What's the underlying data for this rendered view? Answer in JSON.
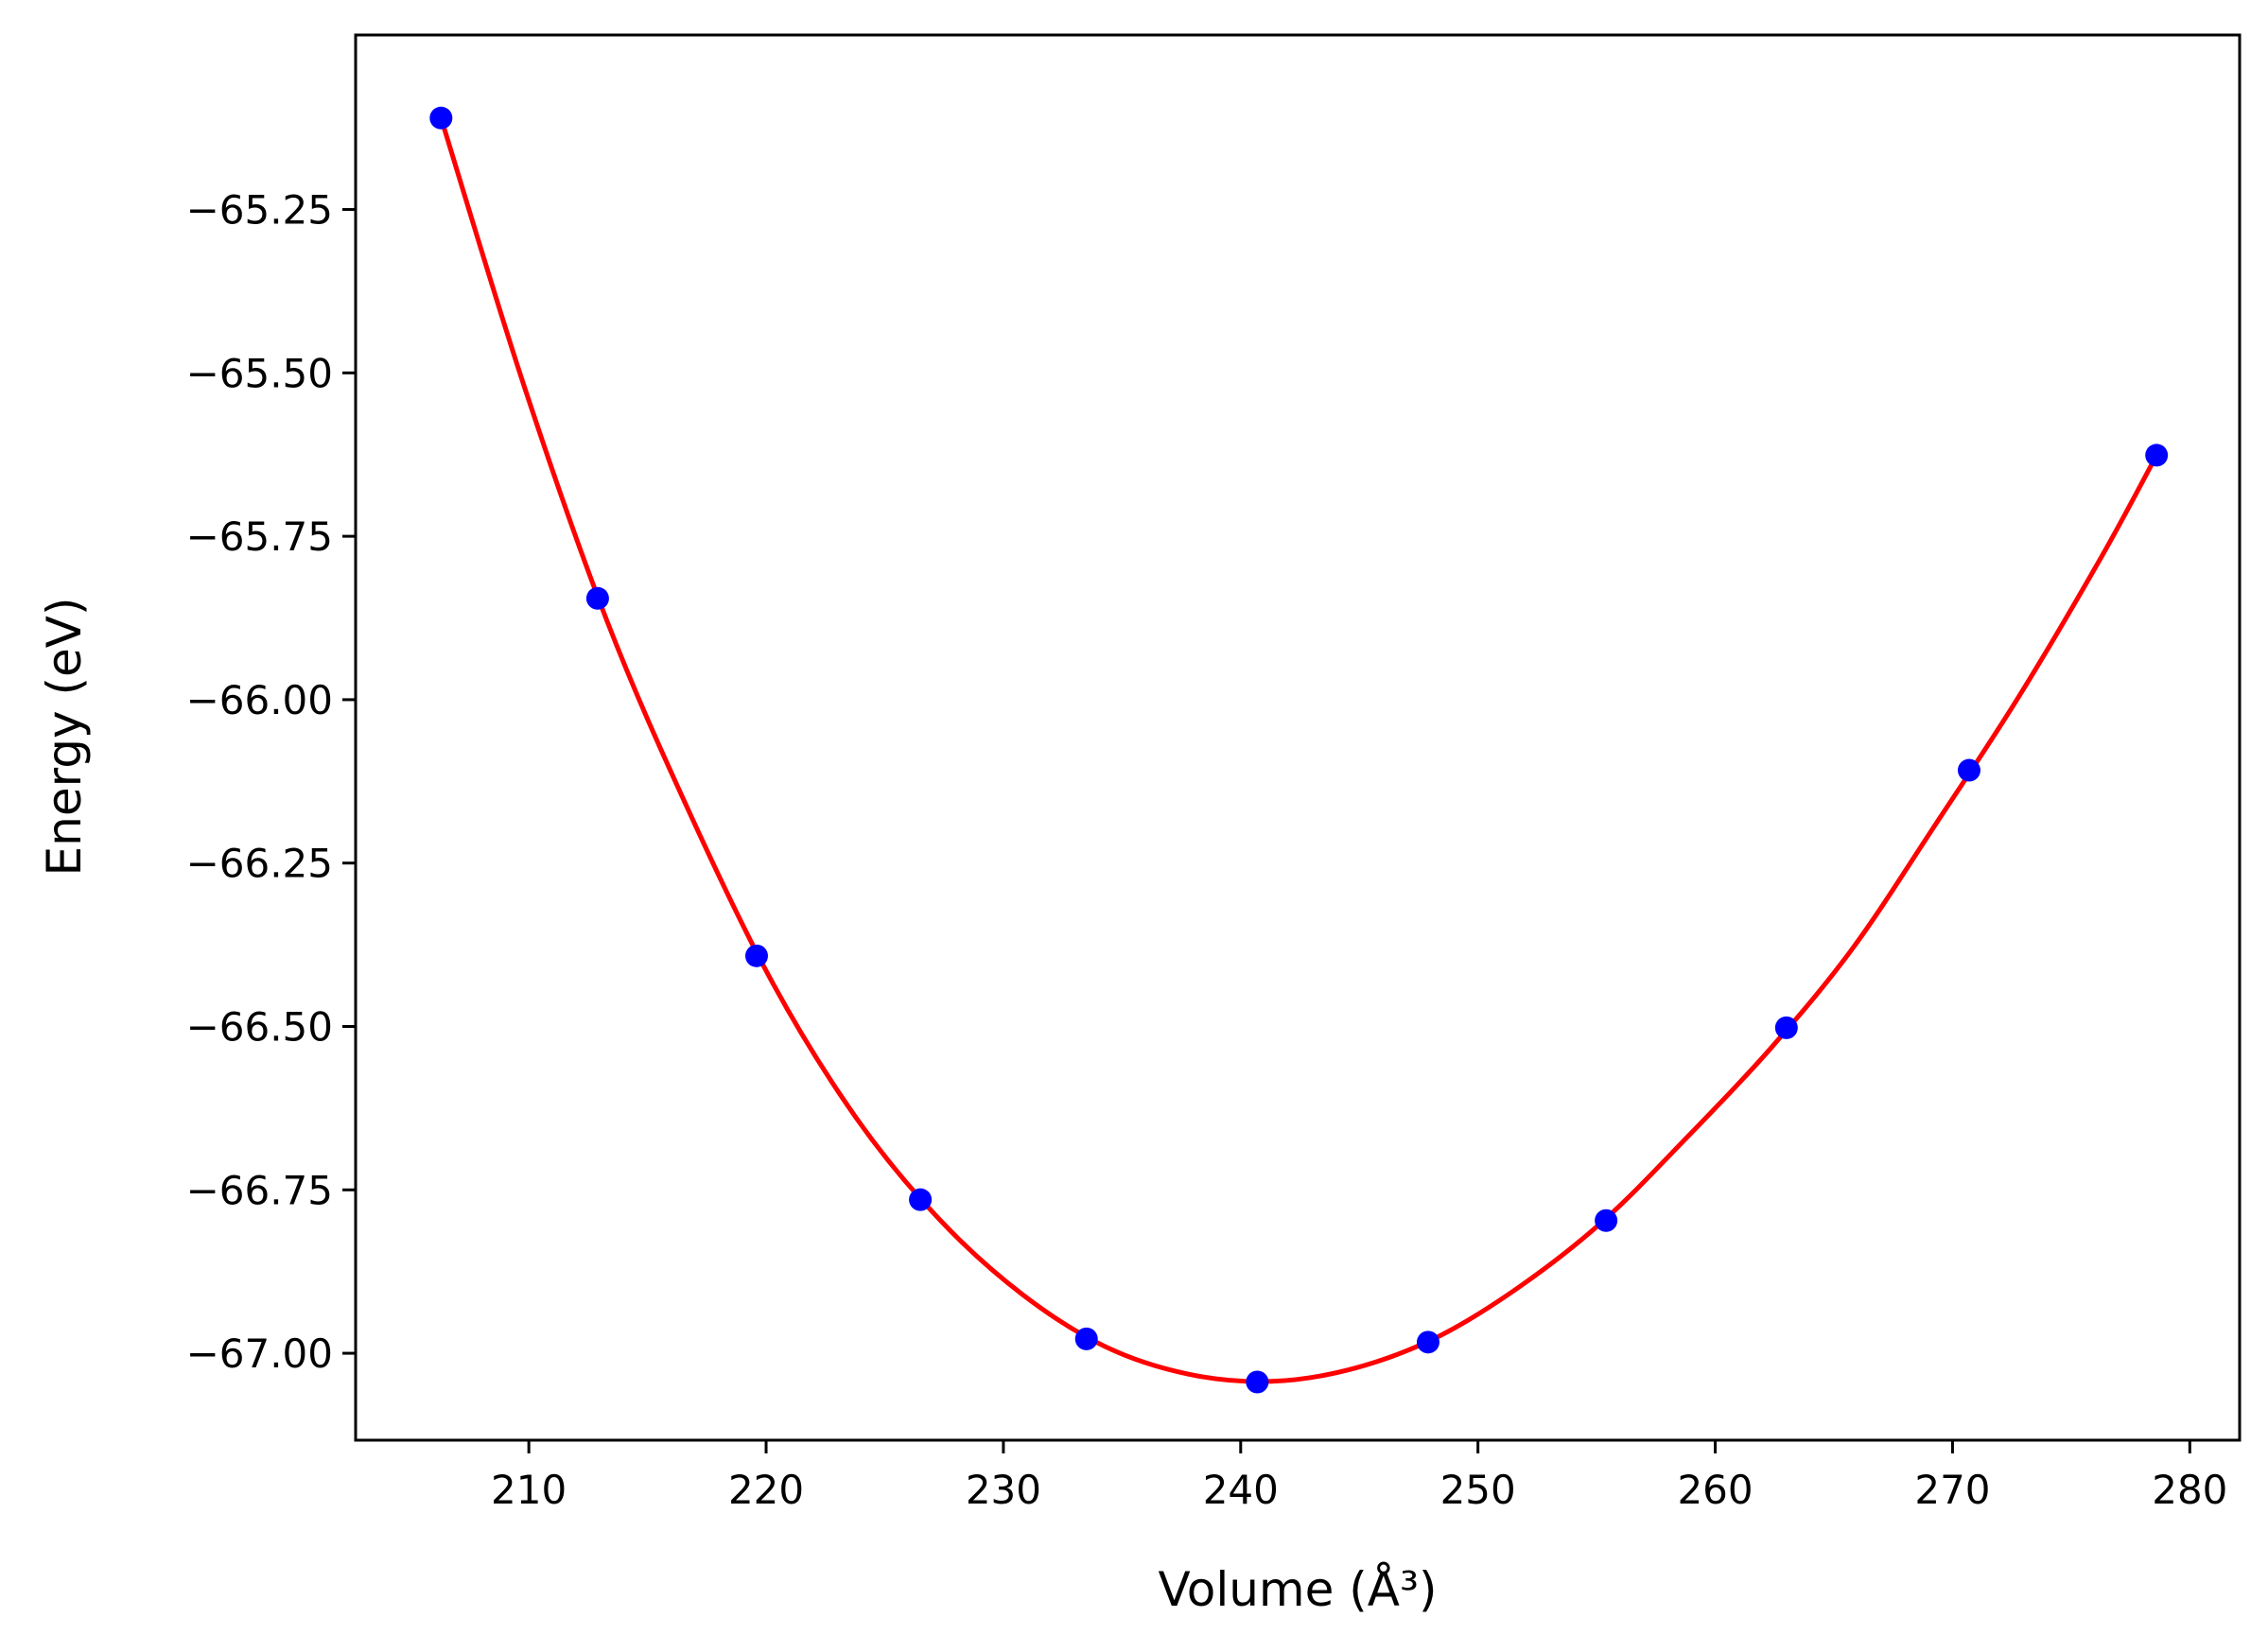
{
  "chart_data": {
    "type": "scatter",
    "title": "",
    "xlabel": "Volume (Å³)",
    "ylabel": "Energy (eV)",
    "xlim": [
      202.7,
      282.1
    ],
    "ylim": [
      -67.133,
      -64.983
    ],
    "xticks": [
      210,
      220,
      230,
      240,
      250,
      260,
      270,
      280
    ],
    "xtick_labels": [
      "210",
      "220",
      "230",
      "240",
      "250",
      "260",
      "270",
      "280"
    ],
    "yticks": [
      -65.25,
      -65.5,
      -65.75,
      -66.0,
      -66.25,
      -66.5,
      -66.75,
      -67.0
    ],
    "ytick_labels": [
      "−65.25",
      "−65.50",
      "−65.75",
      "−66.00",
      "−66.25",
      "−66.50",
      "−66.75",
      "−67.00"
    ],
    "grid": false,
    "legend": "none",
    "series": [
      {
        "kind": "points",
        "color": "#0000ff",
        "x": [
          206.3,
          212.9,
          219.6,
          226.5,
          233.5,
          240.7,
          247.9,
          255.4,
          263.0,
          270.7,
          278.6
        ],
        "y": [
          -65.11,
          -65.845,
          -66.392,
          -66.765,
          -66.978,
          -67.044,
          -66.983,
          -66.797,
          -66.502,
          -66.108,
          -65.626
        ]
      },
      {
        "kind": "fit-line",
        "color": "#ff0000",
        "x": [
          206.3,
          209.8,
          213.3,
          216.8,
          220.3,
          223.8,
          227.3,
          230.8,
          234.3,
          237.8,
          241.3,
          244.8,
          248.3,
          251.8,
          255.3,
          258.8,
          262.3,
          265.8,
          269.3,
          272.8,
          276.3,
          278.6
        ],
        "y": [
          -65.11,
          -65.52,
          -65.88,
          -66.175,
          -66.435,
          -66.64,
          -66.795,
          -66.91,
          -66.99,
          -67.032,
          -67.043,
          -67.023,
          -66.975,
          -66.897,
          -66.797,
          -66.67,
          -66.535,
          -66.38,
          -66.19,
          -65.995,
          -65.78,
          -65.626
        ]
      }
    ]
  }
}
